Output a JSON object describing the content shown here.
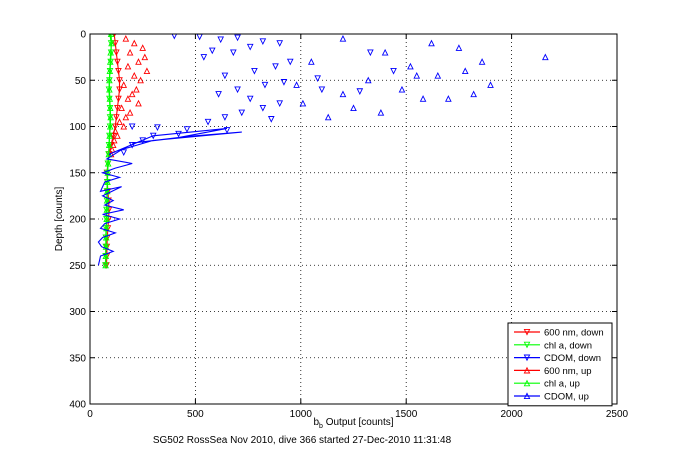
{
  "chart_data": {
    "type": "scatter",
    "footer": "SG502 RossSea Nov 2010, dive 366 started 27-Dec-2010 11:31:48",
    "xlabel_main": "b",
    "xlabel_sub": "b",
    "xlabel_rest": " Output [counts]",
    "ylabel": "Depth [counts]",
    "xlim": [
      0,
      2500
    ],
    "ylim": [
      0,
      400
    ],
    "y_reversed": true,
    "grid": true,
    "legend_position": "bottom-right",
    "xticks": [
      "0",
      "500",
      "1000",
      "1500",
      "2000",
      "2500"
    ],
    "yticks": [
      "0",
      "50",
      "100",
      "150",
      "200",
      "250",
      "300",
      "350",
      "400"
    ],
    "colors": {
      "red": "#ff0000",
      "green": "#00ff00",
      "blue": "#0000ff"
    },
    "series": [
      {
        "name": "600 nm, down",
        "color": "#ff0000",
        "marker": "triangle-down",
        "style": "line",
        "points": [
          [
            115,
            0
          ],
          [
            120,
            10
          ],
          [
            125,
            20
          ],
          [
            130,
            30
          ],
          [
            135,
            40
          ],
          [
            140,
            50
          ],
          [
            140,
            60
          ],
          [
            135,
            70
          ],
          [
            130,
            80
          ],
          [
            125,
            90
          ],
          [
            120,
            100
          ],
          [
            110,
            110
          ],
          [
            100,
            120
          ],
          [
            90,
            130
          ],
          [
            85,
            140
          ],
          [
            80,
            150
          ],
          [
            82,
            160
          ],
          [
            85,
            170
          ],
          [
            88,
            180
          ],
          [
            90,
            190
          ],
          [
            88,
            200
          ],
          [
            85,
            210
          ],
          [
            82,
            220
          ],
          [
            80,
            230
          ],
          [
            80,
            240
          ],
          [
            78,
            250
          ]
        ]
      },
      {
        "name": "chl a, down",
        "color": "#00ff00",
        "marker": "triangle-down",
        "style": "line",
        "points": [
          [
            95,
            0
          ],
          [
            100,
            10
          ],
          [
            100,
            20
          ],
          [
            98,
            30
          ],
          [
            95,
            40
          ],
          [
            92,
            50
          ],
          [
            90,
            60
          ],
          [
            92,
            70
          ],
          [
            95,
            80
          ],
          [
            95,
            90
          ],
          [
            95,
            100
          ],
          [
            92,
            110
          ],
          [
            90,
            120
          ],
          [
            88,
            130
          ],
          [
            85,
            140
          ],
          [
            82,
            150
          ],
          [
            82,
            160
          ],
          [
            80,
            170
          ],
          [
            80,
            180
          ],
          [
            78,
            190
          ],
          [
            78,
            200
          ],
          [
            76,
            210
          ],
          [
            75,
            220
          ],
          [
            75,
            230
          ],
          [
            74,
            240
          ],
          [
            73,
            250
          ]
        ]
      },
      {
        "name": "CDOM, down",
        "color": "#0000ff",
        "marker": "triangle-down",
        "style": "points",
        "points": [
          [
            400,
            2
          ],
          [
            520,
            3
          ],
          [
            620,
            6
          ],
          [
            700,
            4
          ],
          [
            820,
            8
          ],
          [
            900,
            10
          ],
          [
            760,
            14
          ],
          [
            580,
            18
          ],
          [
            680,
            20
          ],
          [
            540,
            25
          ],
          [
            950,
            30
          ],
          [
            880,
            35
          ],
          [
            780,
            40
          ],
          [
            640,
            45
          ],
          [
            1080,
            48
          ],
          [
            920,
            52
          ],
          [
            830,
            55
          ],
          [
            700,
            60
          ],
          [
            1280,
            62
          ],
          [
            610,
            65
          ],
          [
            760,
            70
          ],
          [
            900,
            75
          ],
          [
            820,
            80
          ],
          [
            720,
            85
          ],
          [
            640,
            90
          ],
          [
            560,
            95
          ],
          [
            860,
            92
          ],
          [
            1100,
            60
          ],
          [
            1440,
            40
          ],
          [
            1330,
            20
          ],
          [
            200,
            100
          ],
          [
            320,
            101
          ],
          [
            460,
            103
          ],
          [
            650,
            104
          ],
          [
            420,
            108
          ],
          [
            300,
            110
          ],
          [
            250,
            115
          ],
          [
            200,
            120
          ],
          [
            160,
            128
          ]
        ]
      },
      {
        "name": "600 nm, up",
        "color": "#ff0000",
        "marker": "triangle-up",
        "style": "points",
        "points": [
          [
            170,
            5
          ],
          [
            210,
            10
          ],
          [
            250,
            15
          ],
          [
            190,
            20
          ],
          [
            260,
            25
          ],
          [
            230,
            30
          ],
          [
            180,
            35
          ],
          [
            270,
            40
          ],
          [
            210,
            45
          ],
          [
            240,
            50
          ],
          [
            160,
            55
          ],
          [
            220,
            60
          ],
          [
            200,
            65
          ],
          [
            180,
            70
          ],
          [
            230,
            75
          ],
          [
            150,
            80
          ],
          [
            190,
            85
          ],
          [
            170,
            90
          ],
          [
            140,
            95
          ],
          [
            160,
            100
          ],
          [
            120,
            105
          ],
          [
            130,
            110
          ],
          [
            115,
            115
          ],
          [
            110,
            120
          ],
          [
            105,
            125
          ],
          [
            100,
            130
          ]
        ]
      },
      {
        "name": "chl a, up",
        "color": "#00ff00",
        "marker": "triangle-up",
        "style": "line",
        "points": [
          [
            100,
            0
          ],
          [
            102,
            10
          ],
          [
            98,
            20
          ],
          [
            96,
            30
          ],
          [
            94,
            40
          ],
          [
            92,
            50
          ],
          [
            92,
            60
          ],
          [
            94,
            70
          ],
          [
            96,
            80
          ],
          [
            98,
            90
          ],
          [
            96,
            100
          ],
          [
            93,
            110
          ],
          [
            91,
            120
          ],
          [
            89,
            130
          ],
          [
            86,
            140
          ],
          [
            84,
            150
          ],
          [
            83,
            160
          ],
          [
            82,
            170
          ],
          [
            81,
            180
          ],
          [
            80,
            190
          ],
          [
            79,
            200
          ],
          [
            78,
            210
          ],
          [
            77,
            220
          ],
          [
            76,
            230
          ],
          [
            75,
            240
          ],
          [
            74,
            250
          ]
        ]
      },
      {
        "name": "CDOM, up",
        "color": "#0000ff",
        "marker": "triangle-up",
        "style": "points",
        "points": [
          [
            1200,
            5
          ],
          [
            1620,
            10
          ],
          [
            1750,
            15
          ],
          [
            1400,
            20
          ],
          [
            2160,
            25
          ],
          [
            1860,
            30
          ],
          [
            1520,
            35
          ],
          [
            1780,
            40
          ],
          [
            1650,
            45
          ],
          [
            1320,
            50
          ],
          [
            1900,
            55
          ],
          [
            1480,
            60
          ],
          [
            1200,
            65
          ],
          [
            1700,
            70
          ],
          [
            1010,
            75
          ],
          [
            1250,
            80
          ],
          [
            1380,
            85
          ],
          [
            1130,
            90
          ],
          [
            1550,
            45
          ],
          [
            1050,
            30
          ],
          [
            980,
            55
          ],
          [
            1820,
            65
          ],
          [
            1580,
            70
          ]
        ]
      },
      {
        "name": "",
        "color": "#0000ff",
        "marker": "none",
        "style": "line",
        "points": [
          [
            100,
            130
          ],
          [
            90,
            130
          ],
          [
            300,
            110
          ],
          [
            650,
            102
          ],
          [
            420,
            112
          ],
          [
            200,
            118
          ],
          [
            500,
            110
          ],
          [
            720,
            106
          ],
          [
            300,
            115
          ],
          [
            150,
            125
          ],
          [
            80,
            135
          ],
          [
            200,
            140
          ],
          [
            120,
            145
          ],
          [
            60,
            150
          ],
          [
            140,
            155
          ],
          [
            70,
            160
          ],
          [
            50,
            170
          ],
          [
            150,
            165
          ],
          [
            60,
            175
          ],
          [
            110,
            180
          ],
          [
            70,
            185
          ],
          [
            160,
            190
          ],
          [
            60,
            195
          ],
          [
            140,
            200
          ],
          [
            70,
            205
          ],
          [
            50,
            210
          ],
          [
            120,
            215
          ],
          [
            60,
            220
          ],
          [
            40,
            225
          ],
          [
            55,
            230
          ],
          [
            110,
            235
          ],
          [
            50,
            240
          ],
          [
            45,
            245
          ],
          [
            40,
            250
          ]
        ]
      }
    ]
  }
}
